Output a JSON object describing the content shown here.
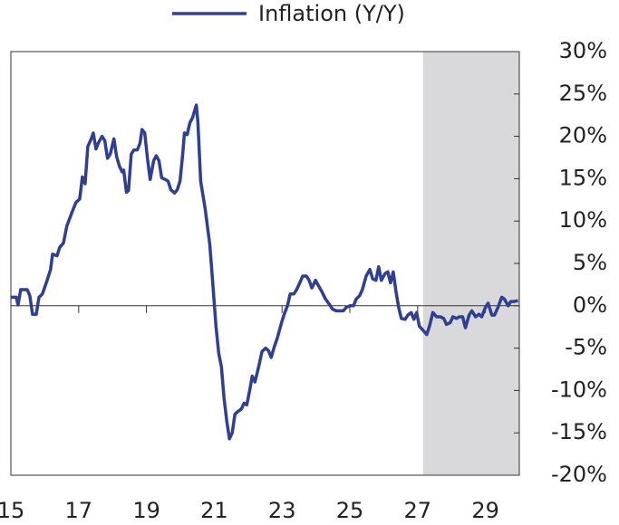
{
  "chart_data": {
    "type": "line",
    "series": [
      {
        "name": "Inflation (Y/Y)",
        "color": "#2f3f92",
        "x": [
          15.0,
          15.16,
          15.21,
          15.29,
          15.48,
          15.56,
          15.64,
          15.75,
          15.83,
          15.93,
          16.07,
          16.17,
          16.23,
          16.36,
          16.44,
          16.55,
          16.65,
          16.81,
          16.92,
          17.03,
          17.11,
          17.19,
          17.27,
          17.37,
          17.43,
          17.51,
          17.59,
          17.69,
          17.77,
          17.85,
          17.93,
          18.04,
          18.12,
          18.2,
          18.28,
          18.33,
          18.41,
          18.47,
          18.55,
          18.63,
          18.73,
          18.81,
          18.87,
          18.95,
          19.03,
          19.11,
          19.21,
          19.29,
          19.37,
          19.45,
          19.56,
          19.64,
          19.72,
          19.83,
          19.91,
          19.99,
          20.07,
          20.12,
          20.2,
          20.28,
          20.36,
          20.47,
          20.52,
          20.6,
          20.73,
          20.87,
          20.97,
          21.05,
          21.13,
          21.21,
          21.29,
          21.37,
          21.45,
          21.53,
          21.61,
          21.69,
          21.8,
          21.88,
          21.96,
          22.04,
          22.12,
          22.2,
          22.31,
          22.41,
          22.52,
          22.6,
          22.68,
          22.76,
          22.87,
          23.0,
          23.08,
          23.16,
          23.24,
          23.35,
          23.43,
          23.51,
          23.61,
          23.72,
          23.8,
          23.88,
          23.99,
          24.07,
          24.17,
          24.28,
          24.39,
          24.49,
          24.6,
          24.71,
          24.81,
          24.89,
          25.0,
          25.11,
          25.19,
          25.29,
          25.37,
          25.48,
          25.59,
          25.67,
          25.77,
          25.85,
          25.93,
          26.04,
          26.12,
          26.2,
          26.28,
          26.36,
          26.44,
          26.52,
          26.63,
          26.71,
          26.81,
          26.89,
          26.97,
          27.05,
          27.16,
          27.27,
          27.35,
          27.45,
          27.56,
          27.67,
          27.77,
          27.85,
          27.96,
          28.04,
          28.15,
          28.23,
          28.33,
          28.41,
          28.52,
          28.6,
          28.71,
          28.81,
          28.89,
          29.0,
          29.08,
          29.19,
          29.27,
          29.37,
          29.48,
          29.56,
          29.67,
          29.75,
          29.85,
          29.96
        ],
        "values": [
          1.0,
          1.0,
          0.1,
          1.9,
          1.9,
          1.2,
          -1.0,
          -1.0,
          1.0,
          1.4,
          3.0,
          4.3,
          6.1,
          5.9,
          6.9,
          7.4,
          9.4,
          11.1,
          12.2,
          12.6,
          15.2,
          14.4,
          18.8,
          19.7,
          20.4,
          18.5,
          19.3,
          20.0,
          19.5,
          17.4,
          17.9,
          19.7,
          17.6,
          16.5,
          15.8,
          16.0,
          13.4,
          13.6,
          17.9,
          18.4,
          18.4,
          19.2,
          20.8,
          20.4,
          17.4,
          14.9,
          17.1,
          17.7,
          17.1,
          15.1,
          14.9,
          14.7,
          13.7,
          13.3,
          13.7,
          14.7,
          17.9,
          20.4,
          20.2,
          21.6,
          22.2,
          23.7,
          21.6,
          14.7,
          11.5,
          7.2,
          1.9,
          -2.4,
          -5.6,
          -7.2,
          -10.9,
          -13.6,
          -15.7,
          -15.0,
          -12.8,
          -12.5,
          -12.2,
          -11.5,
          -11.7,
          -10.1,
          -8.3,
          -9.0,
          -7.2,
          -5.4,
          -5.0,
          -5.3,
          -6.1,
          -5.0,
          -3.7,
          -1.8,
          -0.8,
          0.0,
          1.4,
          1.4,
          1.9,
          2.6,
          3.5,
          3.5,
          3.0,
          2.1,
          3.0,
          2.4,
          1.7,
          0.8,
          0.2,
          -0.4,
          -0.6,
          -0.6,
          -0.6,
          -0.2,
          0.0,
          0.0,
          0.8,
          1.2,
          1.9,
          3.5,
          4.3,
          3.2,
          3.0,
          4.6,
          3.0,
          3.8,
          4.0,
          2.7,
          4.0,
          1.7,
          -0.2,
          -1.5,
          -1.6,
          -1.1,
          -0.8,
          -1.6,
          -0.8,
          -2.4,
          -2.9,
          -3.4,
          -2.4,
          -0.8,
          -1.3,
          -1.3,
          -1.5,
          -2.2,
          -2.0,
          -1.3,
          -1.5,
          -1.3,
          -1.3,
          -2.6,
          -1.1,
          -0.6,
          -1.3,
          -1.0,
          -1.3,
          -0.2,
          0.3,
          -1.1,
          -1.1,
          -0.2,
          1.0,
          0.8,
          0.0,
          0.5,
          0.5,
          0.6
        ]
      }
    ],
    "xlim": [
      15,
      30
    ],
    "xticks": [
      15,
      17,
      19,
      21,
      23,
      25,
      27,
      29
    ],
    "ylim": [
      -20,
      30
    ],
    "yticks": [
      {
        "value": -20,
        "label": "-20%"
      },
      {
        "value": -15,
        "label": "-15%"
      },
      {
        "value": -10,
        "label": "-10%"
      },
      {
        "value": -5,
        "label": "-5%"
      },
      {
        "value": 0,
        "label": "0%"
      },
      {
        "value": 5,
        "label": "5%"
      },
      {
        "value": 10,
        "label": "10%"
      },
      {
        "value": 15,
        "label": "15%"
      },
      {
        "value": 20,
        "label": "20%"
      },
      {
        "value": 25,
        "label": "25%"
      },
      {
        "value": 30,
        "label": "30%"
      }
    ],
    "shaded_region": [
      27.16,
      30
    ],
    "shade_color": "#d9d9dc",
    "legend": "top"
  }
}
